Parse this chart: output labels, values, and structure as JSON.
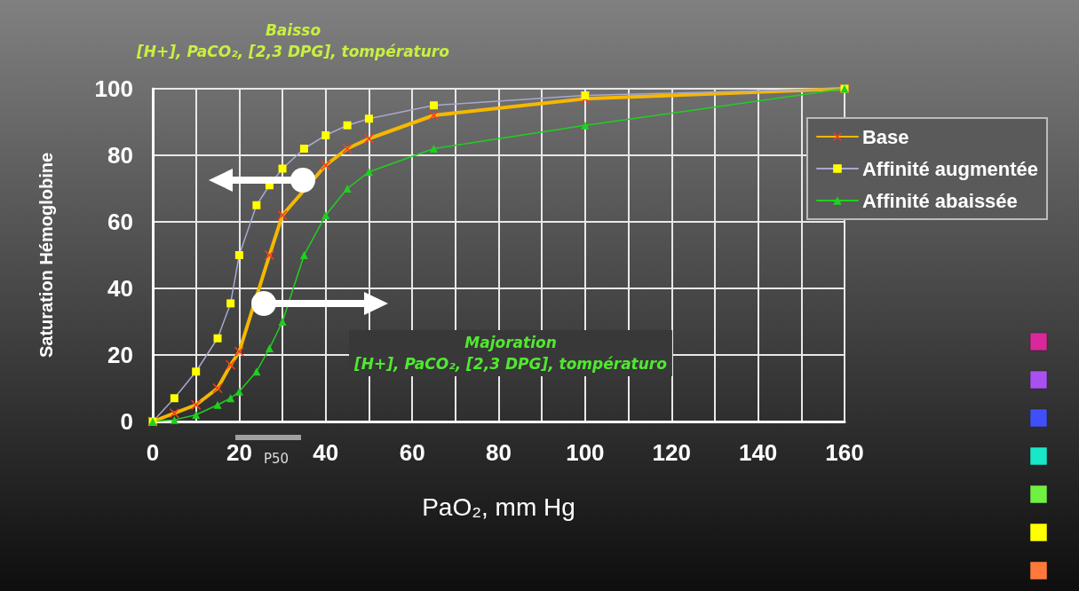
{
  "chart_data": {
    "type": "line",
    "xlabel": "PaO₂, mm Hg",
    "ylabel": "Saturation Hémoglobine",
    "annotations": [
      "Baisso\n[H+], PaCO₂, [2,3 DPG], tompératuro",
      "Majoration\n[H+], PaCO₂, [2,3 DPG], tompératuro",
      "P50"
    ],
    "xlim": [
      0,
      160
    ],
    "xticks": [
      0,
      20,
      40,
      60,
      80,
      100,
      120,
      140,
      160
    ],
    "ylim": [
      0,
      100
    ],
    "yticks": [
      0,
      20,
      40,
      60,
      80,
      100
    ],
    "grid": true,
    "legend": "top right",
    "series": [
      {
        "name": "Base",
        "color": "#f5b800",
        "marker": "cross",
        "x": [
          0,
          5,
          10,
          15,
          18,
          20,
          27,
          30,
          40,
          45,
          50,
          65,
          100,
          160
        ],
        "values": [
          0,
          2.5,
          5,
          10,
          17,
          21,
          50,
          62,
          77,
          82,
          85,
          92,
          97,
          100
        ]
      },
      {
        "name": "Affinité augmentée",
        "color": "#a8a8d0",
        "marker": "square",
        "x": [
          0,
          5,
          10,
          15,
          18,
          20,
          24,
          27,
          30,
          35,
          40,
          45,
          50,
          65,
          100,
          160
        ],
        "values": [
          0,
          7,
          15,
          25,
          35.5,
          50,
          65,
          71,
          76,
          82,
          86,
          89,
          91,
          95,
          98,
          100
        ]
      },
      {
        "name": "Affinité abaissée",
        "color": "#20d020",
        "marker": "triangle",
        "x": [
          0,
          5,
          10,
          15,
          18,
          20,
          24,
          27,
          30,
          35,
          40,
          45,
          50,
          65,
          100,
          160
        ],
        "values": [
          0,
          0.5,
          2,
          5,
          7,
          9,
          15,
          22,
          30,
          50,
          62,
          70,
          75,
          82,
          89,
          100
        ]
      }
    ]
  }
}
